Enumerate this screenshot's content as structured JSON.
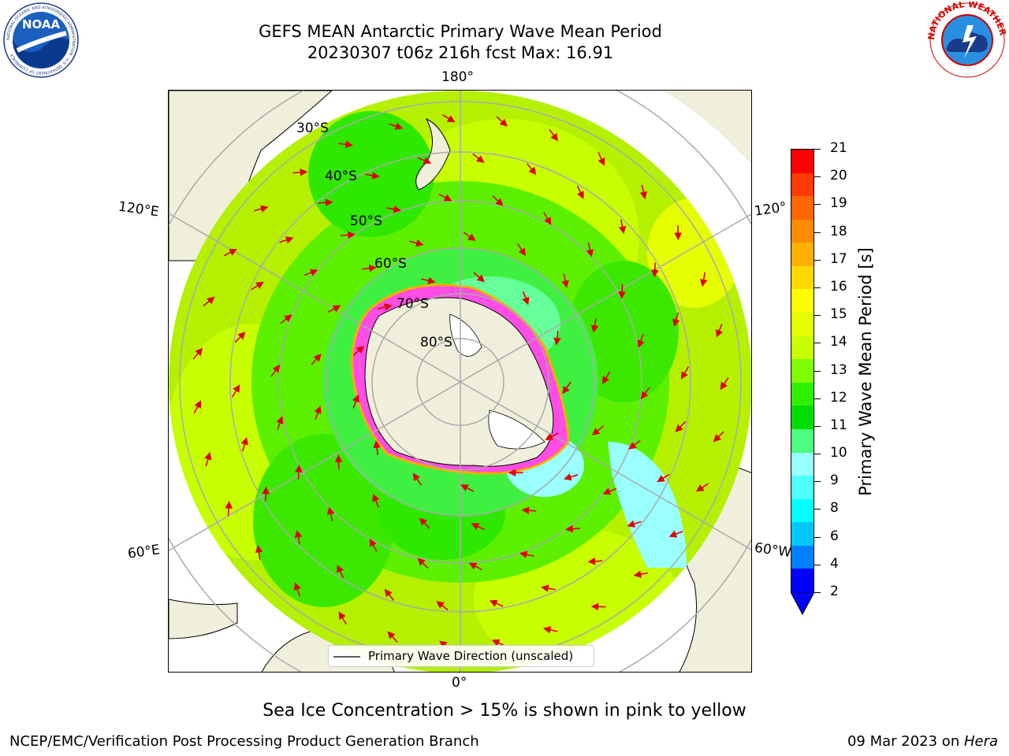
{
  "header": {
    "title_line1": "GEFS MEAN Antarctic Primary Wave Mean Period",
    "title_line2": "20230307 t06z 216h fcst   Max: 16.91"
  },
  "logos": {
    "noaa_text": "NOAA",
    "noaa_ring": "NATIONAL OCEANIC AND ATMOSPHERIC ADMINISTRATION · U.S. DEPARTMENT OF COMMERCE",
    "nws_ring": "NATIONAL WEATHER SERVICE"
  },
  "map": {
    "longitude_labels": {
      "top": "180°",
      "bottom": "0°",
      "left_upper": "120°E",
      "left_lower": "60°E",
      "right_upper": "120°",
      "right_lower": "60°W"
    },
    "latitude_labels": [
      "30°S",
      "40°S",
      "50°S",
      "60°S",
      "70°S",
      "80°S"
    ],
    "legend_label": "Primary Wave Direction (unscaled)"
  },
  "colorbar": {
    "title": "Primary Wave Mean Period [s]",
    "ticks": [
      "21",
      "20",
      "19",
      "18",
      "17",
      "16",
      "15",
      "14",
      "13",
      "12",
      "11",
      "10",
      "9",
      "8",
      "6",
      "4",
      "2"
    ],
    "colors": [
      "#ff0000",
      "#ff3b00",
      "#ff6600",
      "#ff8c00",
      "#ffb000",
      "#ffd800",
      "#ffff00",
      "#e6ff00",
      "#c8ff00",
      "#7fff00",
      "#2ff000",
      "#00dd00",
      "#4dff80",
      "#99ffff",
      "#4dffff",
      "#00ffff",
      "#00c8ff",
      "#0080ff",
      "#0000ff"
    ]
  },
  "subtitle": "Sea Ice Concentration > 15% is shown in pink to yellow",
  "footer": {
    "left": "NCEP/EMC/Verification Post Processing Product Generation Branch",
    "right_date": "09 Mar 2023 on ",
    "right_host": "Hera"
  }
}
